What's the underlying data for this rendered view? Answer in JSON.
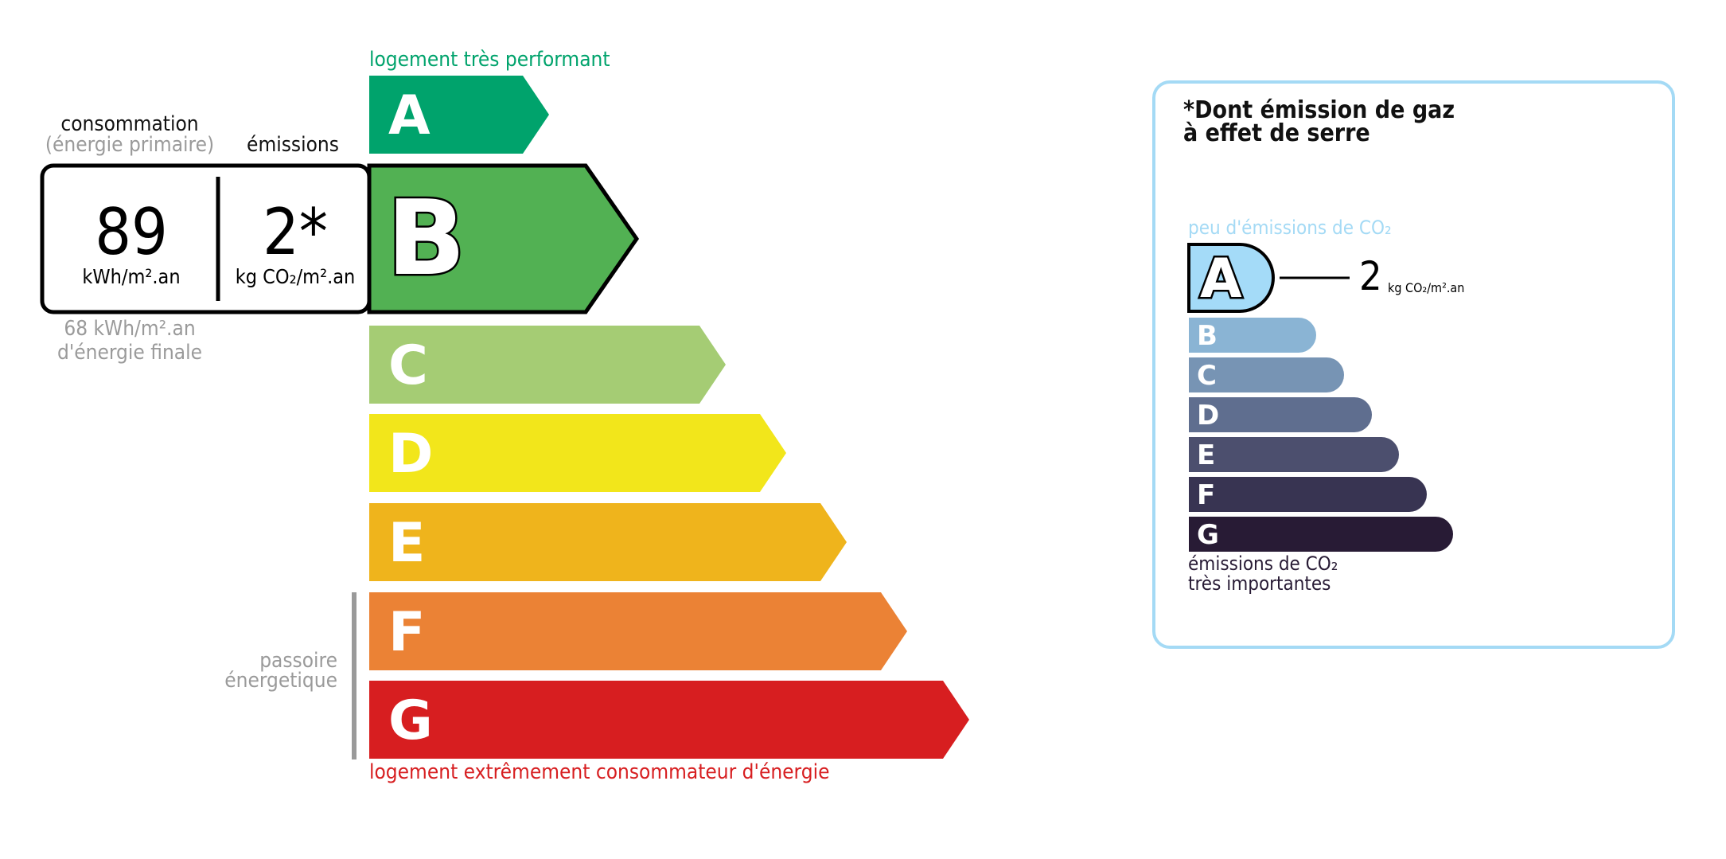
{
  "energy": {
    "top_label": "logement très performant",
    "bottom_label": "logement extrêmement consommateur d'énergie",
    "classes": [
      {
        "letter": "A",
        "color": "#00a36c"
      },
      {
        "letter": "B",
        "color": "#52b153"
      },
      {
        "letter": "C",
        "color": "#a5cc74"
      },
      {
        "letter": "D",
        "color": "#f2e61b"
      },
      {
        "letter": "E",
        "color": "#efb41c"
      },
      {
        "letter": "F",
        "color": "#eb8235"
      },
      {
        "letter": "G",
        "color": "#d71e20"
      }
    ],
    "current_class": "B",
    "passoire_line1": "passoire",
    "passoire_line2": "énergetique",
    "consumption_header": "consommation",
    "consumption_subheader": "(énergie primaire)",
    "emissions_header": "émissions",
    "consumption_value": "89",
    "consumption_unit": "kWh/m².an",
    "emissions_value": "2*",
    "emissions_unit": "kg CO₂/m².an",
    "final_energy_line1": "68 kWh/m².an",
    "final_energy_line2": "d'énergie finale",
    "top_color": "#00a36c",
    "bottom_color": "#d71e20"
  },
  "ges": {
    "title_line1": "*Dont émission de gaz",
    "title_line2": "à effet de serre",
    "top_label": "peu d'émissions de CO₂",
    "bottom_label_line1": "émissions de CO₂",
    "bottom_label_line2": "très importantes",
    "value": "2",
    "unit": "kg CO₂/m².an",
    "current_class": "A",
    "border_color": "#a4daf5",
    "classes": [
      {
        "letter": "A",
        "color": "#a4dbf8"
      },
      {
        "letter": "B",
        "color": "#8ab4d4"
      },
      {
        "letter": "C",
        "color": "#7794b4"
      },
      {
        "letter": "D",
        "color": "#5f6e8f"
      },
      {
        "letter": "E",
        "color": "#4c4f6e"
      },
      {
        "letter": "F",
        "color": "#383452"
      },
      {
        "letter": "G",
        "color": "#281b35"
      }
    ]
  }
}
